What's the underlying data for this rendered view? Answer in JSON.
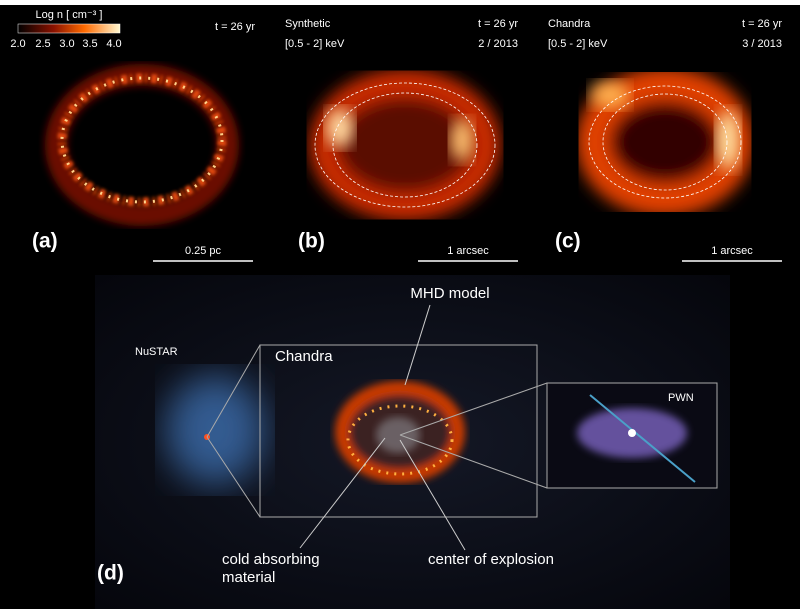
{
  "panel_a": {
    "label": "(a)",
    "colorbar_title": "Log n [ cm⁻³ ]",
    "colorbar_ticks": [
      "2.0",
      "2.5",
      "3.0",
      "3.5",
      "4.0"
    ],
    "time": "t = 26 yr",
    "scale": "0.25 pc"
  },
  "panel_b": {
    "label": "(b)",
    "title": "Synthetic",
    "band": "[0.5 - 2] keV",
    "time": "t = 26 yr",
    "date": "2 / 2013",
    "scale": "1 arcsec"
  },
  "panel_c": {
    "label": "(c)",
    "title": "Chandra",
    "band": "[0.5 - 2] keV",
    "time": "t = 26 yr",
    "date": "3 / 2013",
    "scale": "1 arcsec"
  },
  "panel_d": {
    "label": "(d)",
    "insets": {
      "nustar": "NuSTAR",
      "chandra": "Chandra",
      "pwn": "PWN"
    },
    "annotations": {
      "mhd": "MHD model",
      "cold": [
        "cold absorbing",
        "material"
      ],
      "center": "center of explosion"
    }
  }
}
